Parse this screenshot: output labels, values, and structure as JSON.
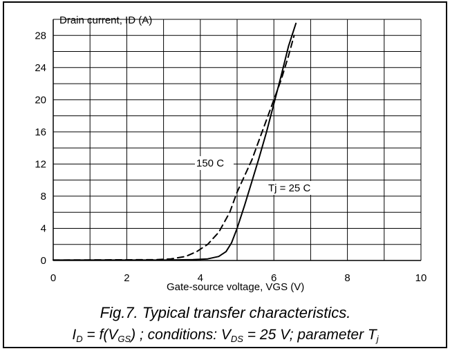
{
  "chart_data": {
    "type": "line",
    "title": "",
    "ylabel": "Drain current, ID (A)",
    "xlabel": "Gate-source voltage, VGS (V)",
    "xlim": [
      0,
      10
    ],
    "ylim": [
      0,
      30
    ],
    "x_ticks": [
      "0",
      "2",
      "4",
      "6",
      "8",
      "10"
    ],
    "y_ticks": [
      "0",
      "4",
      "8",
      "12",
      "16",
      "20",
      "24",
      "28"
    ],
    "grid": true,
    "series": [
      {
        "name": "Tj = 25 C",
        "style": "solid",
        "points": [
          [
            0,
            0.05
          ],
          [
            3.0,
            0.05
          ],
          [
            3.8,
            0.1
          ],
          [
            4.2,
            0.2
          ],
          [
            4.5,
            0.5
          ],
          [
            4.7,
            1.1
          ],
          [
            4.85,
            2.2
          ],
          [
            5.0,
            4.0
          ],
          [
            5.2,
            6.8
          ],
          [
            5.4,
            9.8
          ],
          [
            5.6,
            12.8
          ],
          [
            5.8,
            16.0
          ],
          [
            6.0,
            19.5
          ],
          [
            6.2,
            23.0
          ],
          [
            6.4,
            26.7
          ],
          [
            6.6,
            29.5
          ]
        ]
      },
      {
        "name": "150 C",
        "style": "dashed",
        "points": [
          [
            0,
            0.05
          ],
          [
            2.8,
            0.1
          ],
          [
            3.2,
            0.2
          ],
          [
            3.6,
            0.5
          ],
          [
            3.9,
            1.1
          ],
          [
            4.2,
            2.0
          ],
          [
            4.5,
            3.5
          ],
          [
            4.8,
            6.0
          ],
          [
            5.0,
            8.5
          ],
          [
            5.2,
            10.5
          ],
          [
            5.4,
            12.5
          ],
          [
            5.6,
            15.0
          ],
          [
            5.8,
            17.5
          ],
          [
            6.0,
            20.0
          ],
          [
            6.2,
            22.5
          ],
          [
            6.4,
            25.5
          ],
          [
            6.55,
            28.0
          ]
        ]
      }
    ]
  },
  "caption": {
    "line1": "Fig.7.   Typical transfer characteristics.",
    "line2_parts": [
      "I",
      "D",
      " = f(V",
      "GS",
      ") ; conditions: V",
      "DS",
      " = 25 V; parameter T",
      "j"
    ]
  }
}
